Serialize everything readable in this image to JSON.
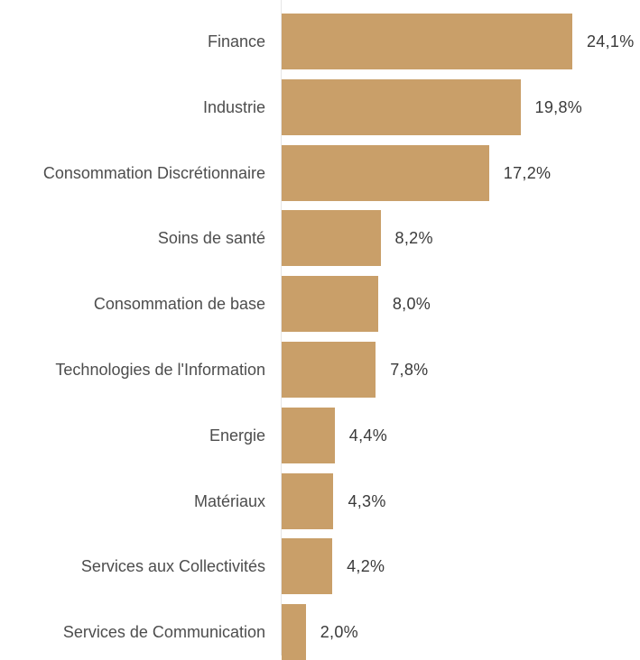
{
  "chart_data": {
    "type": "bar",
    "orientation": "horizontal",
    "categories": [
      "Finance",
      "Industrie",
      "Consommation Discrétionnaire",
      "Soins de santé",
      "Consommation de base",
      "Technologies de l'Information",
      "Energie",
      "Matériaux",
      "Services aux Collectivités",
      "Services de Communication"
    ],
    "values": [
      24.1,
      19.8,
      17.2,
      8.2,
      8.0,
      7.8,
      4.4,
      4.3,
      4.2,
      2.0
    ],
    "value_labels": [
      "24,1%",
      "19,8%",
      "17,2%",
      "8,2%",
      "8,0%",
      "7,8%",
      "4,4%",
      "4,3%",
      "4,2%",
      "2,0%"
    ],
    "bar_color": "#c99f69",
    "title": "",
    "xlabel": "",
    "ylabel": "",
    "xlim": [
      0,
      24.1
    ],
    "grid": false,
    "legend": "none"
  }
}
